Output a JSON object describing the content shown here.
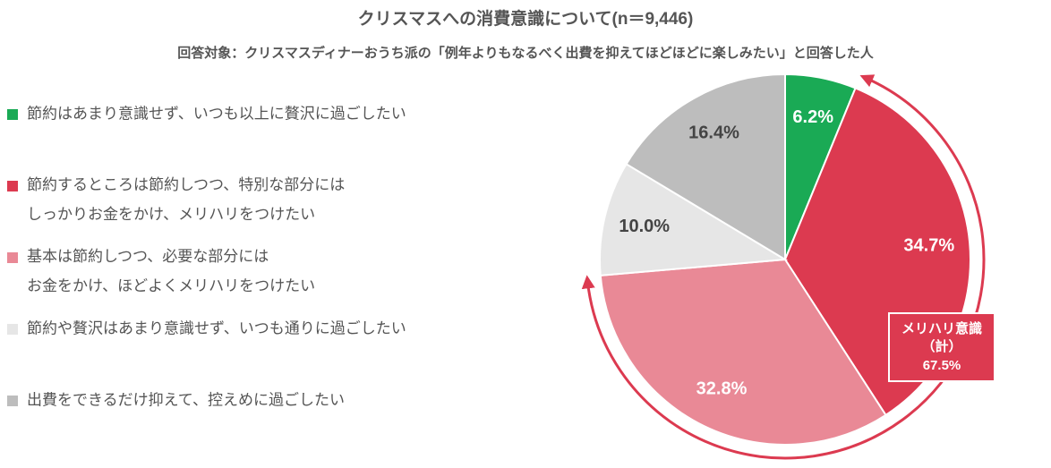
{
  "chart_data": {
    "type": "pie",
    "title": "クリスマスへの消費意識について(n＝9,446)",
    "subtitle": "回答対象：クリスマスディナーおうち派の「例年よりもなるべく出費を抑えてほどほどに楽しみたい」と回答した人",
    "categories": [
      "節約はあまり意識せず、いつも以上に贅沢に過ごしたい",
      "節約するところは節約しつつ、特別な部分には\nしっかりお金をかけ、メリハリをつけたい",
      "基本は節約しつつ、必要な部分には\nお金をかけ、ほどよくメリハリをつけたい",
      "節約や贅沢はあまり意識せず、いつも通りに過ごしたい",
      "出費をできるだけ抑えて、控えめに過ごしたい"
    ],
    "values": [
      6.2,
      34.7,
      32.8,
      10.0,
      16.4
    ],
    "value_labels": [
      "6.2%",
      "34.7%",
      "32.8%",
      "10.0%",
      "16.4%"
    ],
    "colors": [
      "#1aaa55",
      "#dc3a50",
      "#e98996",
      "#e6e6e6",
      "#bdbdbd"
    ],
    "label_colors": [
      "#ffffff",
      "#ffffff",
      "#ffffff",
      "#444444",
      "#444444"
    ],
    "annotation": {
      "label": "メリハリ意識",
      "note": "（計）",
      "value": 67.5,
      "value_label": "67.5%",
      "color": "#dc3a50"
    }
  }
}
